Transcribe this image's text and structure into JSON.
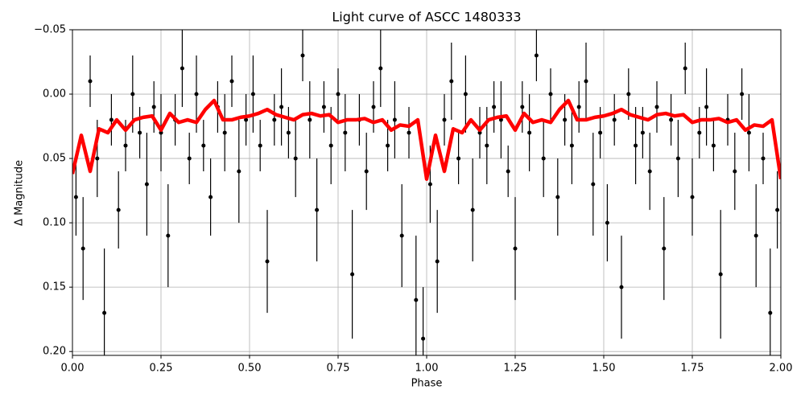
{
  "chart_data": {
    "type": "scatter",
    "title": "Light curve of ASCC 1480333",
    "xlabel": "Phase",
    "ylabel": "Δ Magnitude",
    "xlim": [
      0,
      2
    ],
    "ylim": [
      -0.05,
      0.203
    ],
    "invert_y": true,
    "grid": true,
    "xticks": [
      {
        "value": 0,
        "label": "0.00"
      },
      {
        "value": 0.25,
        "label": "0.25"
      },
      {
        "value": 0.5,
        "label": "0.50"
      },
      {
        "value": 0.75,
        "label": "0.75"
      },
      {
        "value": 1,
        "label": "1.00"
      },
      {
        "value": 1.25,
        "label": "1.25"
      },
      {
        "value": 1.5,
        "label": "1.50"
      },
      {
        "value": 1.75,
        "label": "1.75"
      },
      {
        "value": 2,
        "label": "2.00"
      }
    ],
    "yticks": [
      {
        "value": -0.05,
        "label": "−0.05"
      },
      {
        "value": 0,
        "label": "0.00"
      },
      {
        "value": 0.05,
        "label": "0.05"
      },
      {
        "value": 0.1,
        "label": "0.10"
      },
      {
        "value": 0.15,
        "label": "0.15"
      },
      {
        "value": 0.2,
        "label": "0.20"
      }
    ],
    "series": [
      {
        "type": "scatter",
        "color": "#000000",
        "x": [
          0.01,
          0.03,
          0.05,
          0.07,
          0.09,
          0.11,
          0.13,
          0.15,
          0.17,
          0.19,
          0.21,
          0.23,
          0.25,
          0.27,
          0.29,
          0.31,
          0.33,
          0.35,
          0.37,
          0.39,
          0.41,
          0.43,
          0.45,
          0.47,
          0.49,
          0.51,
          0.53,
          0.55,
          0.57,
          0.59,
          0.61,
          0.63,
          0.65,
          0.67,
          0.69,
          0.71,
          0.73,
          0.75,
          0.77,
          0.79,
          0.81,
          0.83,
          0.85,
          0.87,
          0.89,
          0.91,
          0.93,
          0.95,
          0.97,
          0.99,
          1.01,
          1.03,
          1.05,
          1.07,
          1.09,
          1.11,
          1.13,
          1.15,
          1.17,
          1.19,
          1.21,
          1.23,
          1.25,
          1.27,
          1.29,
          1.31,
          1.33,
          1.35,
          1.37,
          1.39,
          1.41,
          1.43,
          1.45,
          1.47,
          1.49,
          1.51,
          1.53,
          1.55,
          1.57,
          1.59,
          1.61,
          1.63,
          1.65,
          1.67,
          1.69,
          1.71,
          1.73,
          1.75,
          1.77,
          1.79,
          1.81,
          1.83,
          1.85,
          1.87,
          1.89,
          1.91,
          1.93,
          1.95,
          1.97,
          1.99
        ],
        "values": [
          0.08,
          0.12,
          -0.01,
          0.05,
          0.17,
          0.02,
          0.09,
          0.04,
          0.0,
          0.03,
          0.07,
          0.01,
          0.03,
          0.11,
          0.02,
          -0.02,
          0.05,
          0.0,
          0.04,
          0.08,
          0.01,
          0.03,
          -0.01,
          0.06,
          0.02,
          0.0,
          0.04,
          0.13,
          0.02,
          0.01,
          0.03,
          0.05,
          -0.03,
          0.02,
          0.09,
          0.01,
          0.04,
          0.0,
          0.03,
          0.14,
          0.02,
          0.06,
          0.01,
          -0.02,
          0.04,
          0.02,
          0.11,
          0.03,
          0.16,
          0.19,
          0.07,
          0.13,
          0.02,
          -0.01,
          0.05,
          0.0,
          0.09,
          0.03,
          0.04,
          0.01,
          0.02,
          0.06,
          0.12,
          0.01,
          0.03,
          -0.03,
          0.05,
          0.0,
          0.08,
          0.02,
          0.04,
          0.01,
          -0.01,
          0.07,
          0.03,
          0.1,
          0.02,
          0.15,
          0.0,
          0.04,
          0.03,
          0.06,
          0.01,
          0.12,
          0.02,
          0.05,
          -0.02,
          0.08,
          0.03,
          0.01,
          0.04,
          0.14,
          0.02,
          0.06,
          0.0,
          0.03,
          0.11,
          0.05,
          0.17,
          0.09
        ],
        "errors": [
          0.03,
          0.04,
          0.02,
          0.03,
          0.05,
          0.02,
          0.03,
          0.02,
          0.03,
          0.02,
          0.04,
          0.02,
          0.03,
          0.04,
          0.02,
          0.03,
          0.02,
          0.03,
          0.02,
          0.03,
          0.02,
          0.03,
          0.02,
          0.04,
          0.02,
          0.03,
          0.02,
          0.04,
          0.02,
          0.03,
          0.02,
          0.03,
          0.02,
          0.03,
          0.04,
          0.02,
          0.03,
          0.02,
          0.03,
          0.05,
          0.02,
          0.03,
          0.02,
          0.03,
          0.02,
          0.03,
          0.04,
          0.02,
          0.05,
          0.04,
          0.03,
          0.04,
          0.02,
          0.03,
          0.02,
          0.03,
          0.04,
          0.02,
          0.03,
          0.02,
          0.03,
          0.02,
          0.04,
          0.02,
          0.03,
          0.02,
          0.03,
          0.02,
          0.03,
          0.02,
          0.03,
          0.02,
          0.03,
          0.04,
          0.02,
          0.03,
          0.02,
          0.04,
          0.02,
          0.03,
          0.02,
          0.03,
          0.02,
          0.04,
          0.02,
          0.03,
          0.02,
          0.03,
          0.02,
          0.03,
          0.02,
          0.05,
          0.02,
          0.03,
          0.02,
          0.03,
          0.04,
          0.02,
          0.05,
          0.03
        ]
      },
      {
        "type": "line",
        "color": "#ff0000",
        "x": [
          0,
          0.025,
          0.05,
          0.075,
          0.1,
          0.125,
          0.15,
          0.175,
          0.2,
          0.225,
          0.25,
          0.275,
          0.3,
          0.325,
          0.35,
          0.375,
          0.4,
          0.425,
          0.45,
          0.475,
          0.5,
          0.525,
          0.55,
          0.575,
          0.6,
          0.625,
          0.65,
          0.675,
          0.7,
          0.725,
          0.75,
          0.775,
          0.8,
          0.825,
          0.85,
          0.875,
          0.9,
          0.925,
          0.95,
          0.975,
          1,
          1.025,
          1.05,
          1.075,
          1.1,
          1.125,
          1.15,
          1.175,
          1.2,
          1.225,
          1.25,
          1.275,
          1.3,
          1.325,
          1.35,
          1.375,
          1.4,
          1.425,
          1.45,
          1.475,
          1.5,
          1.525,
          1.55,
          1.575,
          1.6,
          1.625,
          1.65,
          1.675,
          1.7,
          1.725,
          1.75,
          1.775,
          1.8,
          1.825,
          1.85,
          1.875,
          1.9,
          1.925,
          1.95,
          1.975,
          2
        ],
        "values": [
          0.062,
          0.032,
          0.06,
          0.027,
          0.03,
          0.02,
          0.028,
          0.02,
          0.018,
          0.017,
          0.028,
          0.015,
          0.022,
          0.02,
          0.022,
          0.012,
          0.005,
          0.02,
          0.02,
          0.018,
          0.017,
          0.015,
          0.012,
          0.016,
          0.018,
          0.02,
          0.016,
          0.015,
          0.017,
          0.016,
          0.022,
          0.02,
          0.02,
          0.019,
          0.022,
          0.02,
          0.028,
          0.024,
          0.025,
          0.02,
          0.066,
          0.032,
          0.06,
          0.027,
          0.03,
          0.02,
          0.028,
          0.02,
          0.018,
          0.017,
          0.028,
          0.015,
          0.022,
          0.02,
          0.022,
          0.012,
          0.005,
          0.02,
          0.02,
          0.018,
          0.017,
          0.015,
          0.012,
          0.016,
          0.018,
          0.02,
          0.016,
          0.015,
          0.017,
          0.016,
          0.022,
          0.02,
          0.02,
          0.019,
          0.022,
          0.02,
          0.028,
          0.024,
          0.025,
          0.02,
          0.066
        ]
      }
    ]
  }
}
